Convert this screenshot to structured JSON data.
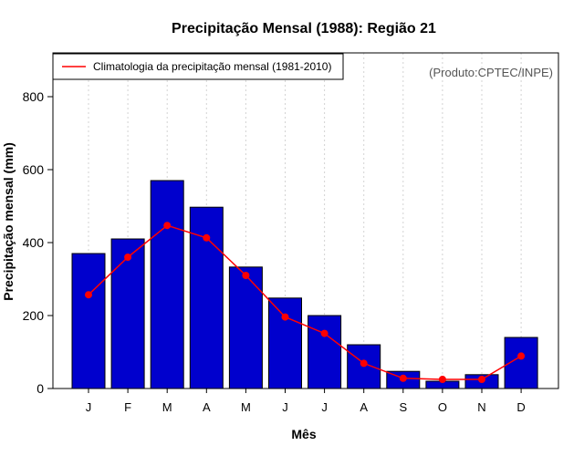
{
  "chart_data": {
    "type": "bar",
    "title": "Precipitação Mensal (1988): Região 21",
    "xlabel": "Mês",
    "ylabel": "Precipitação mensal (mm)",
    "categories": [
      "J",
      "F",
      "M",
      "A",
      "M",
      "J",
      "J",
      "A",
      "S",
      "O",
      "N",
      "D"
    ],
    "ylim": [
      0,
      920
    ],
    "yticks": [
      0,
      200,
      400,
      600,
      800
    ],
    "grid": "vertical dotted",
    "series": [
      {
        "name": "Precipitação mensal (1988)",
        "type": "bar",
        "color": "#0000CD",
        "values": [
          370,
          410,
          570,
          497,
          333,
          248,
          200,
          120,
          47,
          20,
          38,
          140
        ]
      },
      {
        "name": "Climatologia da precipitação mensal (1981-2010)",
        "type": "line",
        "color": "#FF0000",
        "values": [
          257,
          360,
          447,
          413,
          310,
          196,
          151,
          69,
          28,
          25,
          25,
          89
        ]
      }
    ],
    "legend": {
      "position": "top-left",
      "entries": [
        "Climatologia da precipitação mensal (1981-2010)"
      ]
    },
    "annotation": "(Produto:CPTEC/INPE)"
  }
}
